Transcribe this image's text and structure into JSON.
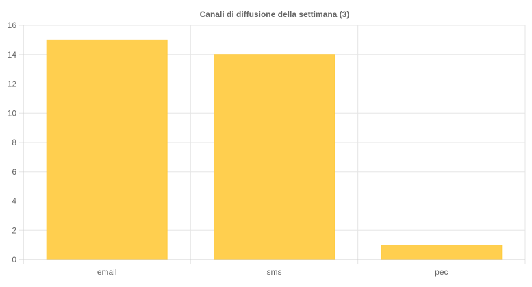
{
  "chart_data": {
    "type": "bar",
    "title": "Canali di diffusione della settimana (3)",
    "xlabel": "",
    "ylabel": "",
    "categories": [
      "email",
      "sms",
      "pec"
    ],
    "values": [
      15,
      14,
      1
    ],
    "ylim": [
      0,
      16
    ],
    "yticks": [
      "0",
      "2",
      "4",
      "6",
      "8",
      "10",
      "12",
      "14",
      "16"
    ],
    "grid": true,
    "legend": "none",
    "colors": {
      "bar": "#FFCF4F",
      "bar_border": "#FFCA3A"
    }
  }
}
